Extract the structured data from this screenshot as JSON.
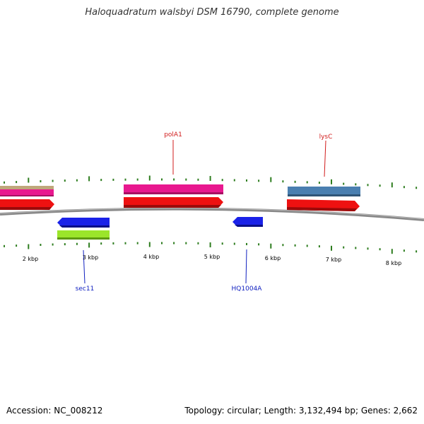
{
  "title": "Haloquadratum walsbyi DSM 16790, complete genome",
  "footer": {
    "accession": "Accession: NC_008212",
    "info": "Topology: circular; Length: 3,132,494 bp; Genes: 2,662"
  },
  "scale_labels": [
    "2 kbp",
    "3 kbp",
    "4 kbp",
    "5 kbp",
    "6 kbp",
    "7 kbp",
    "8 kbp"
  ],
  "gene_labels": {
    "polA1": "polA1",
    "lysC": "lysC",
    "sec11": "sec11",
    "HQ1004A": "HQ1004A"
  },
  "colors": {
    "backbone": "#888888",
    "ticks": "#2e7d1f",
    "cds": "#ee1111",
    "gene_pink": "#e8188f",
    "gene_steel": "#4a7fb0",
    "gene_tan": "#bfa77a",
    "gene_blue": "#1a22e8",
    "gene_lime": "#9be52a",
    "label_red": "#d11b1b",
    "label_blue": "#1020c0"
  }
}
